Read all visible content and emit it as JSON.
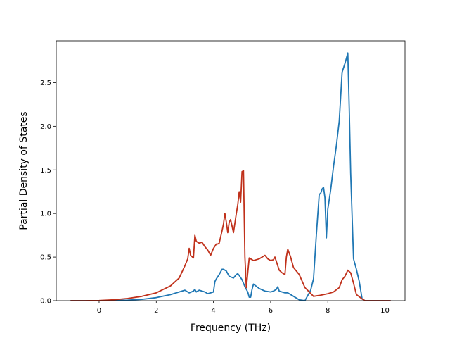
{
  "chart_data": {
    "type": "line",
    "title": "",
    "xlabel": "Frequency (THz)",
    "ylabel": "Partial Density of States",
    "xlim": [
      -1.5,
      10.7
    ],
    "ylim": [
      0,
      2.98
    ],
    "xticks": [
      0,
      2,
      4,
      6,
      8,
      10
    ],
    "yticks": [
      0.0,
      0.5,
      1.0,
      1.5,
      2.0,
      2.5
    ],
    "xtick_labels": [
      "0",
      "2",
      "4",
      "6",
      "8",
      "10"
    ],
    "ytick_labels": [
      "0.0",
      "0.5",
      "1.0",
      "1.5",
      "2.0",
      "2.5"
    ],
    "grid": false,
    "legend": false,
    "series": [
      {
        "color": "#1f77b4",
        "x": [
          -1.0,
          0.0,
          0.5,
          1.0,
          1.5,
          2.0,
          2.5,
          2.8,
          3.0,
          3.15,
          3.3,
          3.35,
          3.4,
          3.5,
          3.6,
          3.7,
          3.8,
          3.9,
          4.0,
          4.05,
          4.1,
          4.2,
          4.3,
          4.35,
          4.45,
          4.55,
          4.7,
          4.8,
          4.85,
          4.9,
          5.0,
          5.1,
          5.2,
          5.25,
          5.3,
          5.35,
          5.4,
          5.6,
          5.8,
          6.0,
          6.1,
          6.2,
          6.25,
          6.3,
          6.4,
          6.5,
          6.6,
          6.8,
          7.0,
          7.2,
          7.3,
          7.4,
          7.5,
          7.6,
          7.7,
          7.75,
          7.8,
          7.85,
          7.9,
          7.95,
          8.0,
          8.1,
          8.2,
          8.3,
          8.4,
          8.5,
          8.6,
          8.7,
          8.75,
          8.8,
          8.9,
          9.0,
          9.1,
          9.2,
          9.3,
          9.5,
          10.0,
          10.2
        ],
        "y": [
          0.0,
          0.0,
          0.002,
          0.006,
          0.015,
          0.035,
          0.07,
          0.1,
          0.12,
          0.09,
          0.11,
          0.13,
          0.1,
          0.12,
          0.11,
          0.1,
          0.08,
          0.09,
          0.1,
          0.22,
          0.25,
          0.3,
          0.36,
          0.36,
          0.34,
          0.28,
          0.26,
          0.3,
          0.31,
          0.29,
          0.24,
          0.16,
          0.1,
          0.04,
          0.04,
          0.13,
          0.19,
          0.14,
          0.11,
          0.1,
          0.11,
          0.13,
          0.16,
          0.11,
          0.1,
          0.09,
          0.09,
          0.05,
          0.01,
          0.0,
          0.06,
          0.12,
          0.25,
          0.76,
          1.22,
          1.23,
          1.28,
          1.3,
          1.18,
          0.72,
          1.05,
          1.27,
          1.54,
          1.78,
          2.06,
          2.62,
          2.72,
          2.84,
          2.2,
          1.46,
          0.48,
          0.36,
          0.22,
          0.02,
          0.0,
          0.0,
          0.0,
          0.0
        ]
      },
      {
        "color": "#c0311b",
        "x": [
          -1.0,
          -0.5,
          0.0,
          0.5,
          1.0,
          1.5,
          2.0,
          2.5,
          2.8,
          3.0,
          3.1,
          3.15,
          3.2,
          3.3,
          3.35,
          3.4,
          3.5,
          3.6,
          3.7,
          3.8,
          3.9,
          4.0,
          4.1,
          4.15,
          4.2,
          4.3,
          4.35,
          4.4,
          4.45,
          4.5,
          4.55,
          4.6,
          4.7,
          4.8,
          4.85,
          4.9,
          4.95,
          5.0,
          5.05,
          5.1,
          5.15,
          5.2,
          5.25,
          5.35,
          5.4,
          5.5,
          5.6,
          5.7,
          5.8,
          5.9,
          6.0,
          6.1,
          6.15,
          6.2,
          6.3,
          6.4,
          6.5,
          6.55,
          6.6,
          6.7,
          6.8,
          7.0,
          7.2,
          7.5,
          7.7,
          8.0,
          8.2,
          8.4,
          8.5,
          8.6,
          8.7,
          8.8,
          8.9,
          9.0,
          9.2,
          9.3,
          10.0,
          10.2
        ],
        "y": [
          0.0,
          0.0,
          0.002,
          0.01,
          0.025,
          0.05,
          0.09,
          0.17,
          0.26,
          0.4,
          0.48,
          0.6,
          0.52,
          0.49,
          0.75,
          0.68,
          0.66,
          0.67,
          0.62,
          0.58,
          0.52,
          0.6,
          0.65,
          0.65,
          0.66,
          0.8,
          0.88,
          1.0,
          0.9,
          0.78,
          0.9,
          0.93,
          0.78,
          1.0,
          1.1,
          1.25,
          1.13,
          1.48,
          1.49,
          0.5,
          0.15,
          0.32,
          0.49,
          0.47,
          0.46,
          0.47,
          0.48,
          0.5,
          0.52,
          0.48,
          0.46,
          0.47,
          0.5,
          0.45,
          0.35,
          0.32,
          0.3,
          0.5,
          0.59,
          0.5,
          0.38,
          0.3,
          0.15,
          0.05,
          0.06,
          0.08,
          0.1,
          0.15,
          0.24,
          0.28,
          0.35,
          0.32,
          0.2,
          0.07,
          0.02,
          0.0,
          0.0,
          0.0
        ]
      }
    ]
  }
}
